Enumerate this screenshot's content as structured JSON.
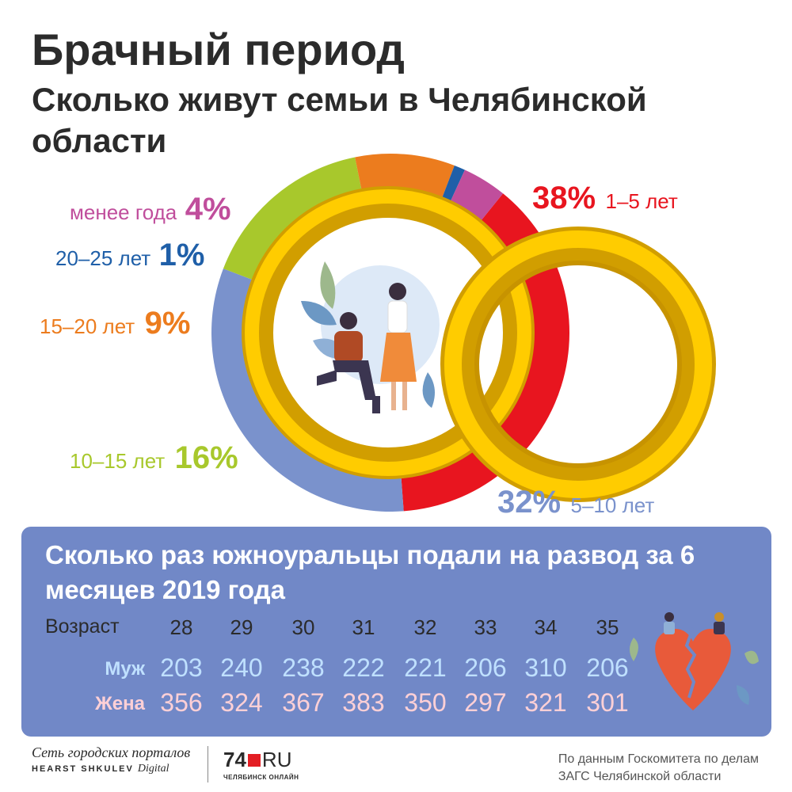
{
  "title": "Брачный период",
  "subtitle": "Сколько живут семьи в Челябинской области",
  "chart_data": [
    {
      "type": "pie",
      "categories": [
        "1–5 лет",
        "5–10 лет",
        "10–15 лет",
        "15–20 лет",
        "20–25 лет",
        "менее года"
      ],
      "values": [
        38,
        32,
        16,
        9,
        1,
        4
      ],
      "labels": [
        "38%",
        "32%",
        "16%",
        "9%",
        "1%",
        "4%"
      ],
      "colors": [
        "#e8151f",
        "#7a92cc",
        "#a8c82c",
        "#ec7c1e",
        "#1f5fa8",
        "#c04e9c"
      ]
    },
    {
      "type": "table",
      "title": "Сколько раз южноуральцы подали на развод за 6 месяцев 2019 года",
      "row_header": "Возраст",
      "columns": [
        "28",
        "29",
        "30",
        "31",
        "32",
        "33",
        "34",
        "35"
      ],
      "rows": [
        {
          "name": "Муж",
          "values": [
            "203",
            "240",
            "238",
            "222",
            "221",
            "206",
            "310",
            "206"
          ]
        },
        {
          "name": "Жена",
          "values": [
            "356",
            "324",
            "367",
            "383",
            "350",
            "297",
            "321",
            "301"
          ]
        }
      ]
    }
  ],
  "footer": {
    "brand_line1": "Сеть городских порталов",
    "brand_line2": "HEARST SHKULEV",
    "brand_line2b": "Digital",
    "logo_74": "74",
    "logo_ru": "RU",
    "logo_sub": "ЧЕЛЯБИНСК ОНЛАЙН",
    "source_line1": "По данным Госкомитета по делам",
    "source_line2": "ЗАГС Челябинской области"
  },
  "icons": {
    "illustration": "couple-proposal-illustration",
    "rings": "wedding-rings-icon",
    "heart": "broken-heart-icon"
  }
}
